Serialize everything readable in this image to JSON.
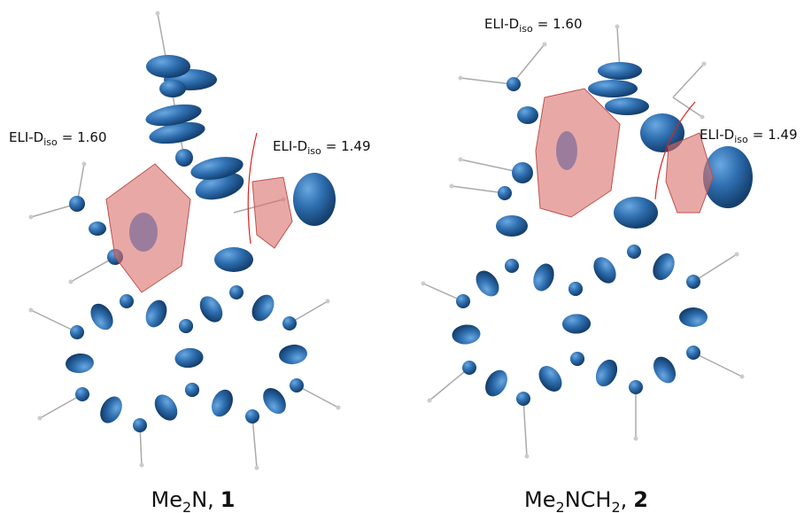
{
  "panels": [
    {
      "annotations": [
        {
          "text": "ELI-D",
          "sub": "iso",
          "value": "= 1.60"
        },
        {
          "text": "ELI-D",
          "sub": "iso",
          "value": "= 1.49"
        }
      ],
      "caption": {
        "text": "Me",
        "sub": "2",
        "rest": "N,",
        "number": "1"
      }
    },
    {
      "annotations": [
        {
          "text": "ELI-D",
          "sub": "iso",
          "value": "= 1.60"
        },
        {
          "text": "ELI-D",
          "sub": "iso",
          "value": "= 1.49"
        }
      ],
      "caption": {
        "text": "Me",
        "sub": "2",
        "rest": "NCH",
        "sub2": "2",
        "rest2": ",",
        "number": "2"
      }
    }
  ]
}
